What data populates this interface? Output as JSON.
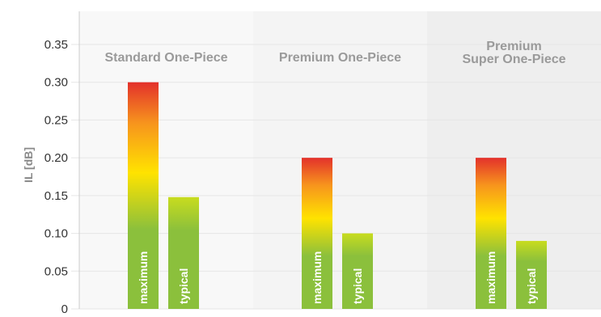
{
  "chart_data": {
    "type": "bar",
    "ylabel": "IL [dB]",
    "ylim": [
      0,
      0.35
    ],
    "yticks": [
      "0",
      "0.05",
      "0.10",
      "0.15",
      "0.20",
      "0.25",
      "0.30",
      "0.35"
    ],
    "grid": true,
    "groups": [
      {
        "label_lines": [
          "Standard One-Piece"
        ],
        "background": "#f8f8f8"
      },
      {
        "label_lines": [
          "Premium One-Piece"
        ],
        "background": "#f4f4f4"
      },
      {
        "label_lines": [
          "Premium",
          "Super One-Piece"
        ],
        "background": "#eeeeee"
      }
    ],
    "series": [
      {
        "name": "maximum",
        "values": [
          0.3,
          0.2,
          0.2
        ]
      },
      {
        "name": "typical",
        "values": [
          0.148,
          0.1,
          0.09
        ]
      }
    ],
    "colors": {
      "green": "#8bc03c",
      "yellow": "#ffe300",
      "orange": "#f7941d",
      "red": "#e3312b",
      "grid": "#e6e6e6",
      "axis": "#cccccc"
    }
  }
}
